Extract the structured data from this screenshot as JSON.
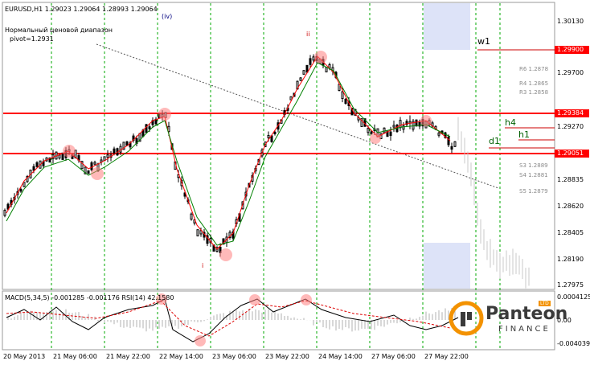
{
  "header": {
    "symbol_line": "EURUSD,H1  1.29023  1.29064  1.28993  1.29064"
  },
  "indicator_note": {
    "line1": "Нормальный ценовой диапазон",
    "line2": "pivot=1.2931"
  },
  "wave_labels": {
    "iv": "(iv)",
    "ii": "ii",
    "i": "i"
  },
  "price_axis": [
    "1.30130",
    "1.29700",
    "1.29270",
    "1.28835",
    "1.28620",
    "1.28405",
    "1.28190",
    "1.27975"
  ],
  "tags": {
    "r1": "1.29384",
    "s1": "1.29051",
    "w1": "1.29900"
  },
  "pivots": {
    "w1": "w1",
    "h4": "h4",
    "h1": "h1",
    "d1": "d1"
  },
  "levels": {
    "r6": "R6 1.2878",
    "r4": "R4 1.2865",
    "r3": "R3 1.2858",
    "s3": "S3 1.2889",
    "s4": "S4 1.2881",
    "s5": "S5 1.2879"
  },
  "macd": {
    "title": "MACD(5,34,5) -0.001285 -0.001176  RSI(14) 42.1580",
    "axis": [
      "0.0004125",
      "0.00",
      "-0.004039"
    ]
  },
  "time_axis": [
    "20 May 2013",
    "21 May 06:00",
    "21 May 22:00",
    "22 May 14:00",
    "23 May 06:00",
    "23 May 22:00",
    "24 May 14:00",
    "27 May 06:00",
    "27 May 22:00"
  ],
  "logo": {
    "name": "Panteon",
    "sub": "FINANCE",
    "badge": "LTD"
  },
  "colors": {
    "support": "#ff0000",
    "ma_fast": "#ff0000",
    "ma_slow": "#008000",
    "grid": "#00aa00",
    "zone": "#dde3f8"
  }
}
